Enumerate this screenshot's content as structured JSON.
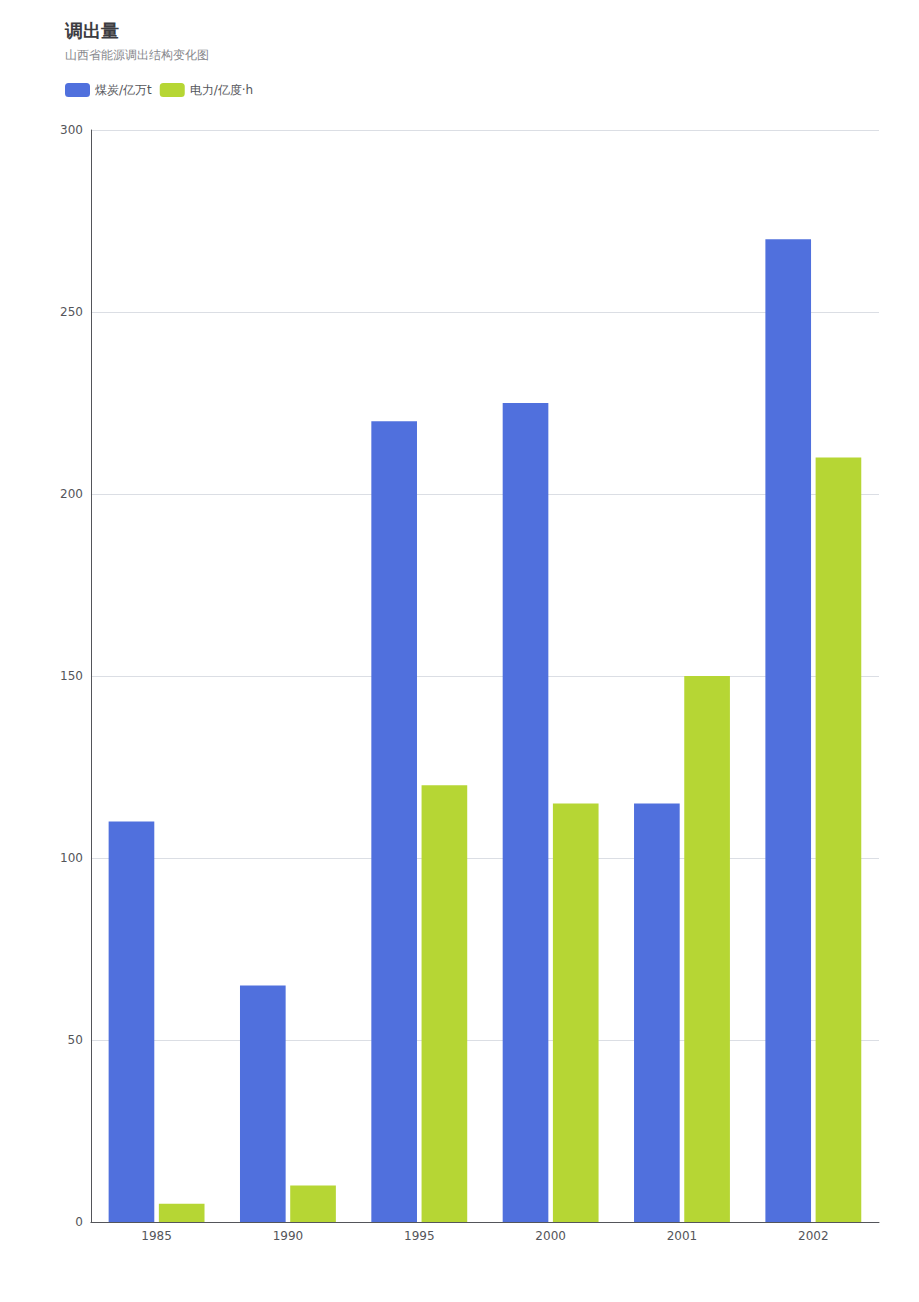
{
  "chart_data": {
    "type": "bar",
    "title": "调出量",
    "subtitle": "山西省能源调出结构变化图",
    "categories": [
      "1985",
      "1990",
      "1995",
      "2000",
      "2001",
      "2002"
    ],
    "series": [
      {
        "name": "煤炭/亿万t",
        "values": [
          110,
          65,
          220,
          225,
          115,
          270
        ]
      },
      {
        "name": "电力/亿度·h",
        "values": [
          5,
          10,
          120,
          115,
          150,
          210
        ]
      }
    ],
    "ylim": [
      0,
      300
    ],
    "yticks": [
      0,
      50,
      100,
      150,
      200,
      250,
      300
    ],
    "grid": true,
    "legend": "upper left"
  }
}
